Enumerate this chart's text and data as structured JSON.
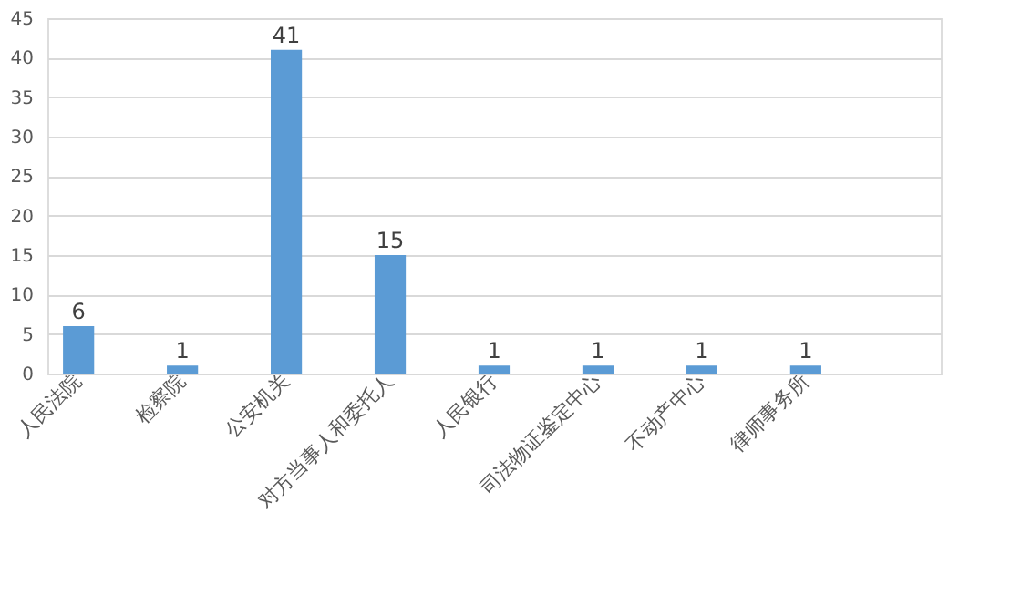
{
  "chart_data": {
    "type": "bar",
    "categories": [
      "人民法院",
      "检察院",
      "公安机关",
      "对方当事人和委托人",
      "人民银行",
      "司法物证鉴定中心",
      "不动产中心",
      "律师事务所",
      null
    ],
    "values": [
      6,
      1,
      41,
      15,
      1,
      1,
      1,
      1,
      null
    ],
    "color": "#5b9bd5",
    "ylim": [
      0,
      45
    ],
    "yticks": [
      0,
      5,
      10,
      15,
      20,
      25,
      30,
      35,
      40,
      45
    ],
    "grid": "y",
    "data_labels": true
  }
}
